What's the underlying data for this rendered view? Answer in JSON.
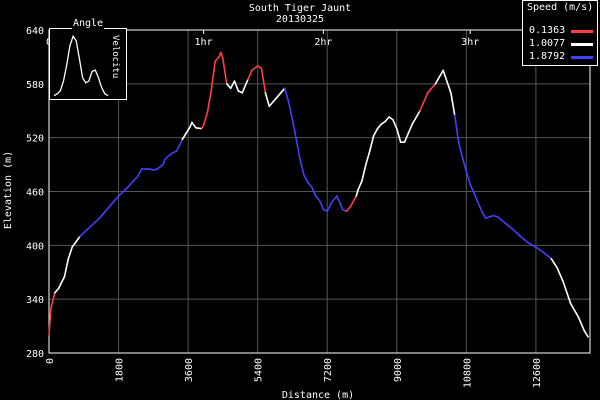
{
  "chart_data": {
    "type": "line",
    "title": "South Tiger Jaunt",
    "subtitle": "20130325",
    "xlabel": "Distance (m)",
    "ylabel": "Elevation (m)",
    "xlim": [
      0,
      14000
    ],
    "ylim": [
      280,
      640
    ],
    "x_ticks": [
      "0",
      "1800",
      "3600",
      "5400",
      "7200",
      "9000",
      "10800",
      "12600"
    ],
    "y_ticks": [
      "280",
      "340",
      "400",
      "460",
      "520",
      "580",
      "640"
    ],
    "time_ticks": [
      {
        "label": "0",
        "distance": 0
      },
      {
        "label": "1hr",
        "distance": 4000
      },
      {
        "label": "2hr",
        "distance": 7100
      },
      {
        "label": "3hr",
        "distance": 10900
      }
    ],
    "grid": true,
    "legend": {
      "title": "Speed (m/s)",
      "entries": [
        {
          "label": "0.1363",
          "color": "#ff4040"
        },
        {
          "label": "1.0077",
          "color": "#ffffff"
        },
        {
          "label": "1.8792",
          "color": "#4040ff"
        }
      ]
    },
    "inset": {
      "title": "Angle",
      "side_label": "Velocitu"
    },
    "series": [
      {
        "x": [
          0,
          50,
          150,
          250,
          400,
          500,
          600,
          800,
          1000,
          1300,
          1600,
          1800,
          2000,
          2300,
          2400,
          2600,
          2700,
          2800,
          2950,
          3000,
          3100,
          3200,
          3300,
          3450,
          3550,
          3650,
          3700,
          3800,
          3950,
          4000,
          4100,
          4200,
          4300,
          4400,
          4450,
          4500,
          4600,
          4700,
          4800,
          4900,
          5000,
          5100,
          5150,
          5250,
          5400,
          5500,
          5600,
          5700,
          5800,
          5900,
          6000,
          6100,
          6200,
          6300,
          6400,
          6500,
          6600,
          6700,
          6800,
          6900,
          7000,
          7100,
          7200,
          7300,
          7450,
          7600,
          7700,
          7800,
          7950,
          8000,
          8100,
          8200,
          8300,
          8400,
          8500,
          8600,
          8700,
          8800,
          8900,
          9000,
          9100,
          9200,
          9300,
          9400,
          9600,
          9800,
          10000,
          10200,
          10400,
          10500,
          10600,
          10700,
          10800,
          10900,
          11000,
          11100,
          11200,
          11300,
          11400,
          11500,
          11600,
          11800,
          12000,
          12200,
          12400,
          12600,
          12800,
          13000,
          13150,
          13300,
          13500,
          13700,
          13850,
          13950
        ],
        "y": [
          300,
          330,
          347,
          352,
          365,
          385,
          398,
          410,
          418,
          430,
          445,
          455,
          463,
          477,
          485,
          485,
          484,
          485,
          490,
          496,
          500,
          503,
          505,
          518,
          525,
          532,
          537,
          531,
          530,
          534,
          548,
          573,
          605,
          610,
          615,
          608,
          580,
          575,
          583,
          572,
          570,
          580,
          585,
          595,
          600,
          597,
          570,
          555,
          560,
          565,
          570,
          575,
          560,
          540,
          518,
          495,
          478,
          470,
          465,
          455,
          450,
          440,
          438,
          447,
          455,
          440,
          438,
          443,
          455,
          462,
          472,
          490,
          505,
          522,
          530,
          535,
          538,
          543,
          540,
          530,
          515,
          515,
          525,
          535,
          550,
          570,
          580,
          595,
          570,
          545,
          515,
          498,
          482,
          468,
          458,
          448,
          438,
          430,
          432,
          433,
          432,
          425,
          418,
          410,
          403,
          398,
          392,
          385,
          375,
          360,
          335,
          320,
          305,
          298
        ],
        "speed_class": [
          "r",
          "r",
          "w",
          "w",
          "w",
          "w",
          "w",
          "b",
          "b",
          "b",
          "b",
          "b",
          "b",
          "b",
          "b",
          "b",
          "b",
          "b",
          "b",
          "b",
          "b",
          "b",
          "b",
          "w",
          "w",
          "w",
          "w",
          "w",
          "r",
          "r",
          "r",
          "r",
          "r",
          "r",
          "r",
          "r",
          "w",
          "w",
          "w",
          "w",
          "w",
          "w",
          "r",
          "r",
          "r",
          "r",
          "w",
          "w",
          "w",
          "w",
          "w",
          "b",
          "b",
          "b",
          "b",
          "b",
          "b",
          "b",
          "b",
          "b",
          "b",
          "b",
          "b",
          "b",
          "b",
          "b",
          "r",
          "r",
          "w",
          "w",
          "w",
          "w",
          "w",
          "w",
          "w",
          "w",
          "w",
          "w",
          "w",
          "w",
          "w",
          "w",
          "w",
          "w",
          "r",
          "r",
          "w",
          "w",
          "w",
          "b",
          "b",
          "b",
          "b",
          "b",
          "b",
          "b",
          "b",
          "b",
          "b",
          "b",
          "b",
          "b",
          "b",
          "b",
          "b",
          "b",
          "b",
          "w",
          "w",
          "w",
          "w",
          "w",
          "w",
          "w"
        ]
      }
    ],
    "inset_data": {
      "values": [
        0.02,
        0.05,
        0.1,
        0.25,
        0.5,
        0.8,
        0.95,
        0.88,
        0.6,
        0.3,
        0.22,
        0.25,
        0.4,
        0.42,
        0.3,
        0.15,
        0.05,
        0.02
      ]
    }
  }
}
